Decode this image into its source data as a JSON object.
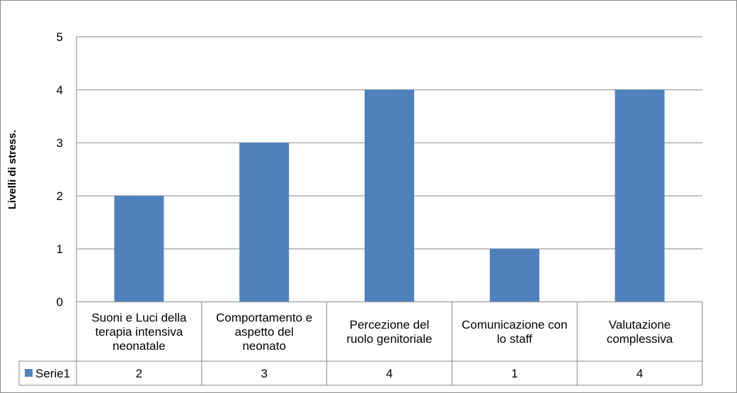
{
  "chart_data": {
    "type": "bar",
    "title": "",
    "xlabel": "",
    "ylabel": "Livelli di stress.",
    "ylim": [
      0,
      5
    ],
    "yticks": [
      0,
      1,
      2,
      3,
      4,
      5
    ],
    "grid": true,
    "legend_placement": "data-table",
    "categories": [
      [
        "Suoni e Luci della",
        "terapia intensiva",
        "neonatale"
      ],
      [
        "Comportamento e",
        "aspetto del",
        "neonato"
      ],
      [
        "Percezione del",
        "ruolo genitoriale"
      ],
      [
        "Comunicazione con",
        "lo staff"
      ],
      [
        "Valutazione",
        "complessiva"
      ]
    ],
    "series": [
      {
        "name": "Serie1",
        "color": "#4f81bd",
        "values": [
          2,
          3,
          4,
          1,
          4
        ]
      }
    ]
  }
}
